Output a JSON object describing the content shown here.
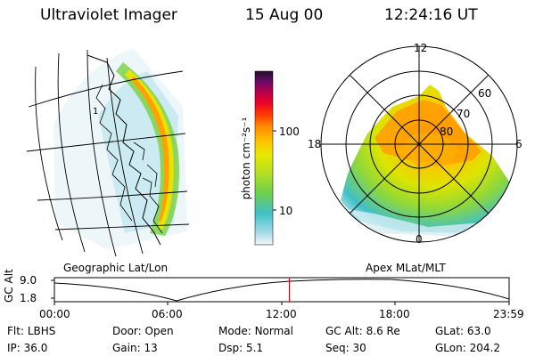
{
  "header": {
    "instrument": "Ultraviolet Imager",
    "date": "15 Aug 00",
    "time": "12:24:16 UT"
  },
  "geo_panel": {
    "caption": "Geographic Lat/Lon",
    "grid_label": "1"
  },
  "polar_panel": {
    "caption": "Apex MLat/MLT",
    "mlt_labels": [
      "12",
      "18",
      "6",
      "0"
    ],
    "lat_labels": [
      "60",
      "70",
      "80"
    ]
  },
  "colorbar": {
    "unit_label": "photon cm⁻²s⁻¹",
    "ticks": [
      "100",
      "10"
    ],
    "scale": "log",
    "colors": [
      "#f4f6f6",
      "#9ad8e8",
      "#3fc0c8",
      "#6fd04a",
      "#b8e020",
      "#e8e800",
      "#ffc000",
      "#ff8c00",
      "#ff3a00",
      "#e8002a",
      "#b8004a",
      "#6a0a6a",
      "#20102a"
    ]
  },
  "altitude_plot": {
    "ylabel": "GC Alt",
    "y_ticks": [
      "9.0",
      "1.8"
    ],
    "x_ticks": [
      "00:00",
      "06:00",
      "12:00",
      "18:00",
      "23:59"
    ],
    "current_time_hours": 12.4
  },
  "status": {
    "row1": [
      {
        "label": "Flt:",
        "value": "LBHS"
      },
      {
        "label": "Door:",
        "value": "Open"
      },
      {
        "label": "Mode:",
        "value": "Normal"
      },
      {
        "label": "GC Alt:",
        "value": "8.6 Re"
      },
      {
        "label": "GLat:",
        "value": "63.0"
      }
    ],
    "row2": [
      {
        "label": "IP:",
        "value": "36.0"
      },
      {
        "label": "Gain:",
        "value": "13"
      },
      {
        "label": "Dsp:",
        "value": "5.1"
      },
      {
        "label": "Seq:",
        "value": "30"
      },
      {
        "label": "GLon:",
        "value": "204.2"
      }
    ]
  }
}
